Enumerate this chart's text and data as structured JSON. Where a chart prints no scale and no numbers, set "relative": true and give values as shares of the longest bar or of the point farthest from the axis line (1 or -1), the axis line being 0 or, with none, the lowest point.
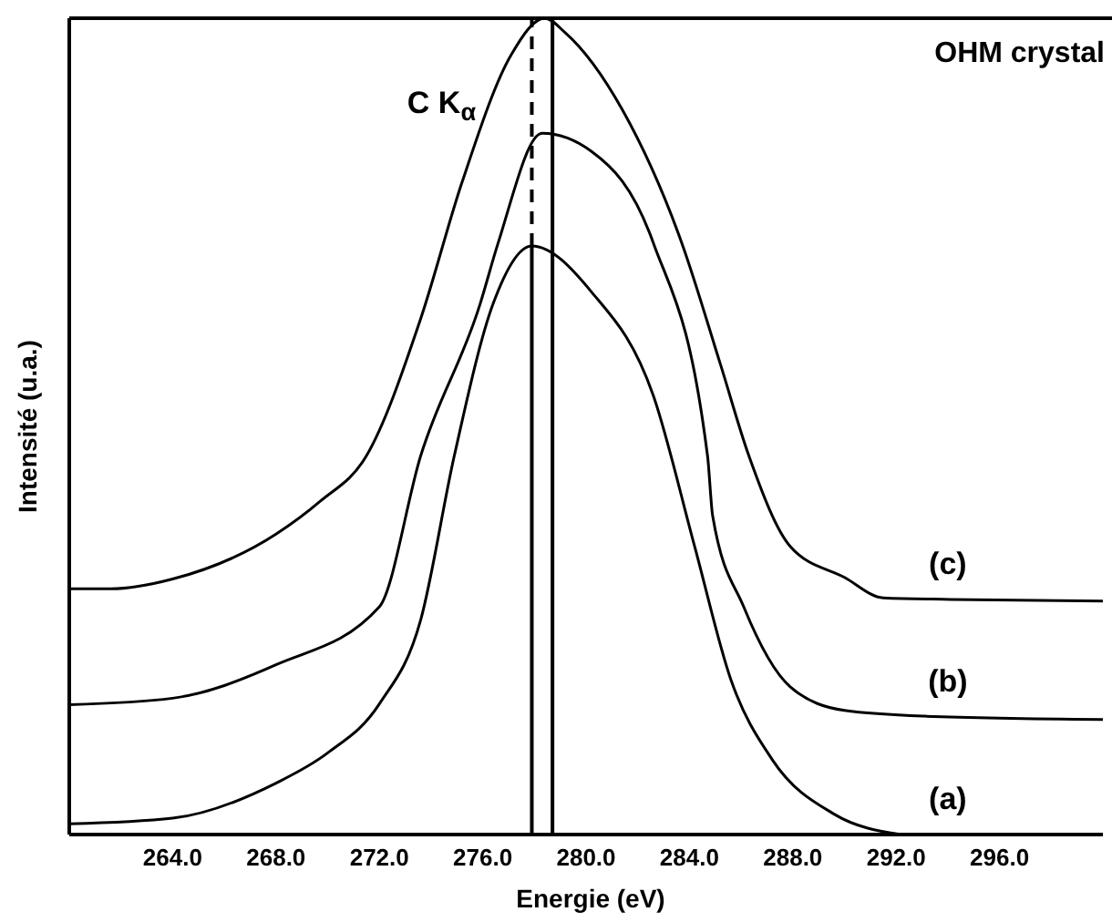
{
  "chart_data": {
    "type": "line",
    "xlabel": "Energie (eV)",
    "ylabel": "Intensité (u.a.)",
    "relative": true,
    "xlim": [
      260,
      300
    ],
    "xticks": [
      {
        "value": 264,
        "label": "264.0"
      },
      {
        "value": 268,
        "label": "268.0"
      },
      {
        "value": 272,
        "label": "272.0"
      },
      {
        "value": 276,
        "label": "276.0"
      },
      {
        "value": 280,
        "label": "280.0"
      },
      {
        "value": 284,
        "label": "284.0"
      },
      {
        "value": 288,
        "label": "288.0"
      },
      {
        "value": 292,
        "label": "292.0"
      },
      {
        "value": 296,
        "label": "296.0"
      }
    ],
    "series": [
      {
        "name": "(a)",
        "color": "#000000",
        "x": [
          260,
          264,
          268,
          270,
          272,
          273.6,
          274.9,
          276.4,
          277.9,
          280.2,
          282.6,
          284.2,
          285.6,
          287.2,
          289.6,
          292.2
        ],
        "values": [
          0.013,
          0.02,
          0.063,
          0.1,
          0.16,
          0.263,
          0.464,
          0.65,
          0.721,
          0.665,
          0.538,
          0.353,
          0.19,
          0.092,
          0.025,
          0
        ]
      },
      {
        "name": "(b)",
        "color": "#000000",
        "x": [
          260,
          264,
          268,
          272,
          273.6,
          275.9,
          276.6,
          278.3,
          280.2,
          282.6,
          284.7,
          284.9,
          286.1,
          287.9,
          290,
          293.1,
          300
        ],
        "values": [
          0.159,
          0.167,
          0.208,
          0.279,
          0.464,
          0.65,
          0.725,
          0.859,
          0.837,
          0.725,
          0.464,
          0.39,
          0.279,
          0.181,
          0.152,
          0.145,
          0.141
        ]
      },
      {
        "name": "(c)",
        "color": "#000000",
        "x": [
          260,
          261.6,
          264,
          268,
          269.7,
          271.5,
          273.6,
          275.2,
          277.1,
          278.4,
          279.2,
          281.4,
          283.7,
          285.2,
          286.3,
          287.9,
          290,
          291.5,
          294.1,
          300
        ],
        "values": [
          0.301,
          0.301,
          0.313,
          0.368,
          0.408,
          0.464,
          0.632,
          0.799,
          0.955,
          1,
          0.982,
          0.888,
          0.725,
          0.576,
          0.464,
          0.353,
          0.315,
          0.29,
          0.288,
          0.286
        ]
      },
      {
        "color": "#000000",
        "x": [
          277.9,
          277.9
        ],
        "values": [
          0,
          0.721
        ],
        "line_style": "solid"
      },
      {
        "color": "#000000",
        "x": [
          277.9,
          277.9
        ],
        "values": [
          0.721,
          1
        ],
        "line_style": "dashed"
      }
    ],
    "ref_lines": [
      {
        "axis": "x",
        "value": 278.7,
        "color": "#000000",
        "line_style": "solid"
      }
    ],
    "annotations": [
      "OHM crystal",
      "C K$_{α}$"
    ],
    "grid": false,
    "legend": false,
    "marker": "none"
  }
}
